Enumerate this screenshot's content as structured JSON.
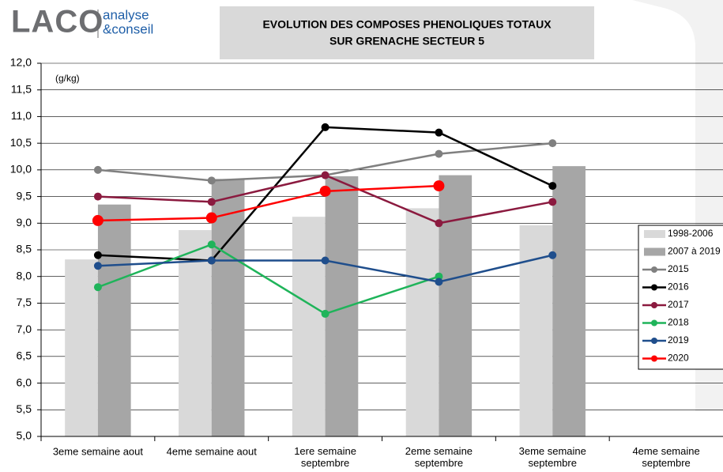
{
  "logo": {
    "name": "LACO",
    "line1": "analyse",
    "line2": "&conseil"
  },
  "chart_data": {
    "type": "bar_line",
    "title": "EVOLUTION DES COMPOSES PHENOLIQUES TOTAUX",
    "subtitle": "SUR GRENACHE SECTEUR 5",
    "y_label": "(g/kg)",
    "categories": [
      "3eme semaine aout",
      "4eme semaine aout",
      "1ere semaine\nseptembre",
      "2eme semaine\nseptembre",
      "3eme semaine\nseptembre",
      "4eme semaine\nseptembre"
    ],
    "ylim": [
      5,
      12
    ],
    "yticks": [
      {
        "value": 5,
        "label": "5,0"
      },
      {
        "value": 5.5,
        "label": "5,5"
      },
      {
        "value": 6,
        "label": "6,0"
      },
      {
        "value": 6.5,
        "label": "6,5"
      },
      {
        "value": 7,
        "label": "7,0"
      },
      {
        "value": 7.5,
        "label": "7,5"
      },
      {
        "value": 8,
        "label": "8,0"
      },
      {
        "value": 8.5,
        "label": "8,5"
      },
      {
        "value": 9,
        "label": "9,0"
      },
      {
        "value": 9.5,
        "label": "9,5"
      },
      {
        "value": 10,
        "label": "10,0"
      },
      {
        "value": 10.5,
        "label": "10,5"
      },
      {
        "value": 11,
        "label": "11,0"
      },
      {
        "value": 11.5,
        "label": "11,5"
      },
      {
        "value": 12,
        "label": "12,0"
      }
    ],
    "grid": true,
    "legend": "right",
    "series": [
      {
        "name": "1998-2006",
        "kind": "bar",
        "color": "#d9d9d9",
        "values": [
          8.32,
          8.87,
          9.12,
          9.28,
          8.96,
          null
        ]
      },
      {
        "name": "2007 à 2019",
        "kind": "bar",
        "color": "#a6a6a6",
        "values": [
          9.35,
          9.83,
          9.88,
          9.9,
          10.07,
          null
        ]
      },
      {
        "name": "2015",
        "kind": "line",
        "color": "#808080",
        "values": [
          10.0,
          9.8,
          9.9,
          10.3,
          10.5,
          null
        ]
      },
      {
        "name": "2016",
        "kind": "line",
        "color": "#000000",
        "values": [
          8.4,
          8.3,
          10.8,
          10.7,
          9.7,
          null
        ]
      },
      {
        "name": "2017",
        "kind": "line",
        "color": "#8b1a3f",
        "values": [
          9.5,
          9.4,
          9.9,
          9.0,
          9.4,
          null
        ]
      },
      {
        "name": "2018",
        "kind": "line",
        "color": "#1fb45a",
        "values": [
          7.8,
          8.6,
          7.3,
          8.0,
          null,
          null
        ]
      },
      {
        "name": "2019",
        "kind": "line",
        "color": "#1f4e8c",
        "values": [
          8.2,
          8.3,
          8.3,
          7.9,
          8.4,
          null
        ]
      },
      {
        "name": "2020",
        "kind": "line",
        "color": "#ff0000",
        "values": [
          9.05,
          9.1,
          9.6,
          9.7,
          null,
          null
        ]
      }
    ]
  }
}
